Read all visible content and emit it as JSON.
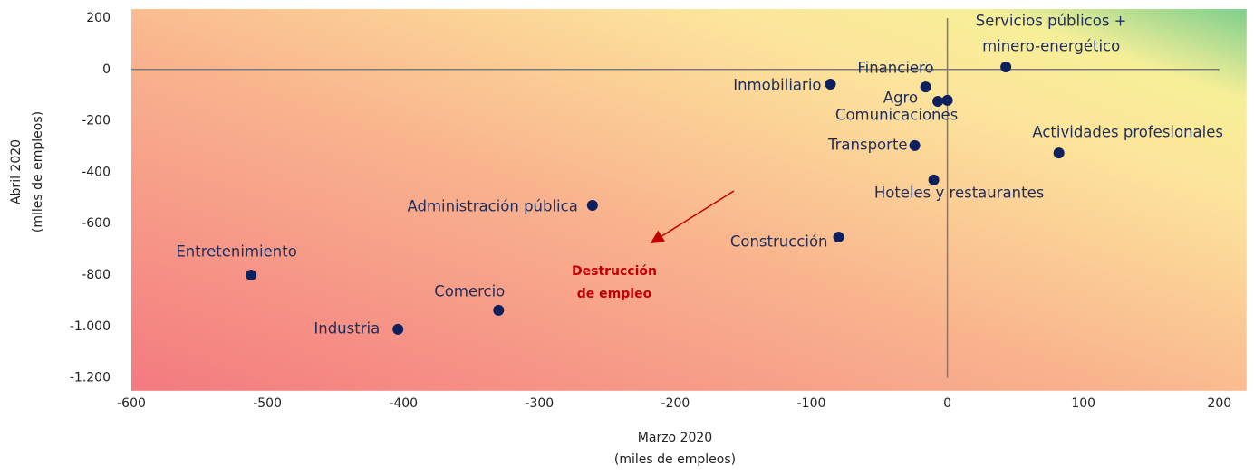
{
  "chart_data": {
    "type": "scatter",
    "xlabel": [
      "Marzo 2020",
      "(miles de empleos)"
    ],
    "ylabel": [
      "Abril 2020",
      "(miles de empleos)"
    ],
    "annotation": [
      "Destrucción",
      "de empleo"
    ],
    "labels": [
      [
        "Servicios públicos +",
        "minero-energético"
      ],
      "Actividades profesionales",
      "Inmobiliario",
      "Financiero",
      "Agro",
      "Comunicaciones",
      "Transporte",
      "Hoteles y restaurantes",
      "Construcción",
      "Administración pública",
      "Entretenimiento",
      "Comercio",
      "Industria"
    ],
    "x": [
      43,
      82,
      -86,
      -16,
      -7,
      0,
      -24,
      -10,
      -80,
      -261,
      -512,
      -330,
      -404
    ],
    "y": [
      10,
      -325,
      -57,
      -68,
      -124,
      -120,
      -296,
      -430,
      -652,
      -529,
      -800,
      -937,
      -1011
    ],
    "color": "#0d1f5c",
    "xlim": [
      -600,
      220
    ],
    "ylim": [
      -1250,
      235
    ],
    "xticks": [
      -600,
      -500,
      -400,
      -300,
      -200,
      -100,
      0,
      100,
      200
    ],
    "yticks": [
      200,
      0,
      -200,
      -400,
      -600,
      -800,
      {
        "value": -1000,
        "label": "-1.000"
      },
      {
        "value": -1200,
        "label": "-1.200"
      }
    ]
  }
}
